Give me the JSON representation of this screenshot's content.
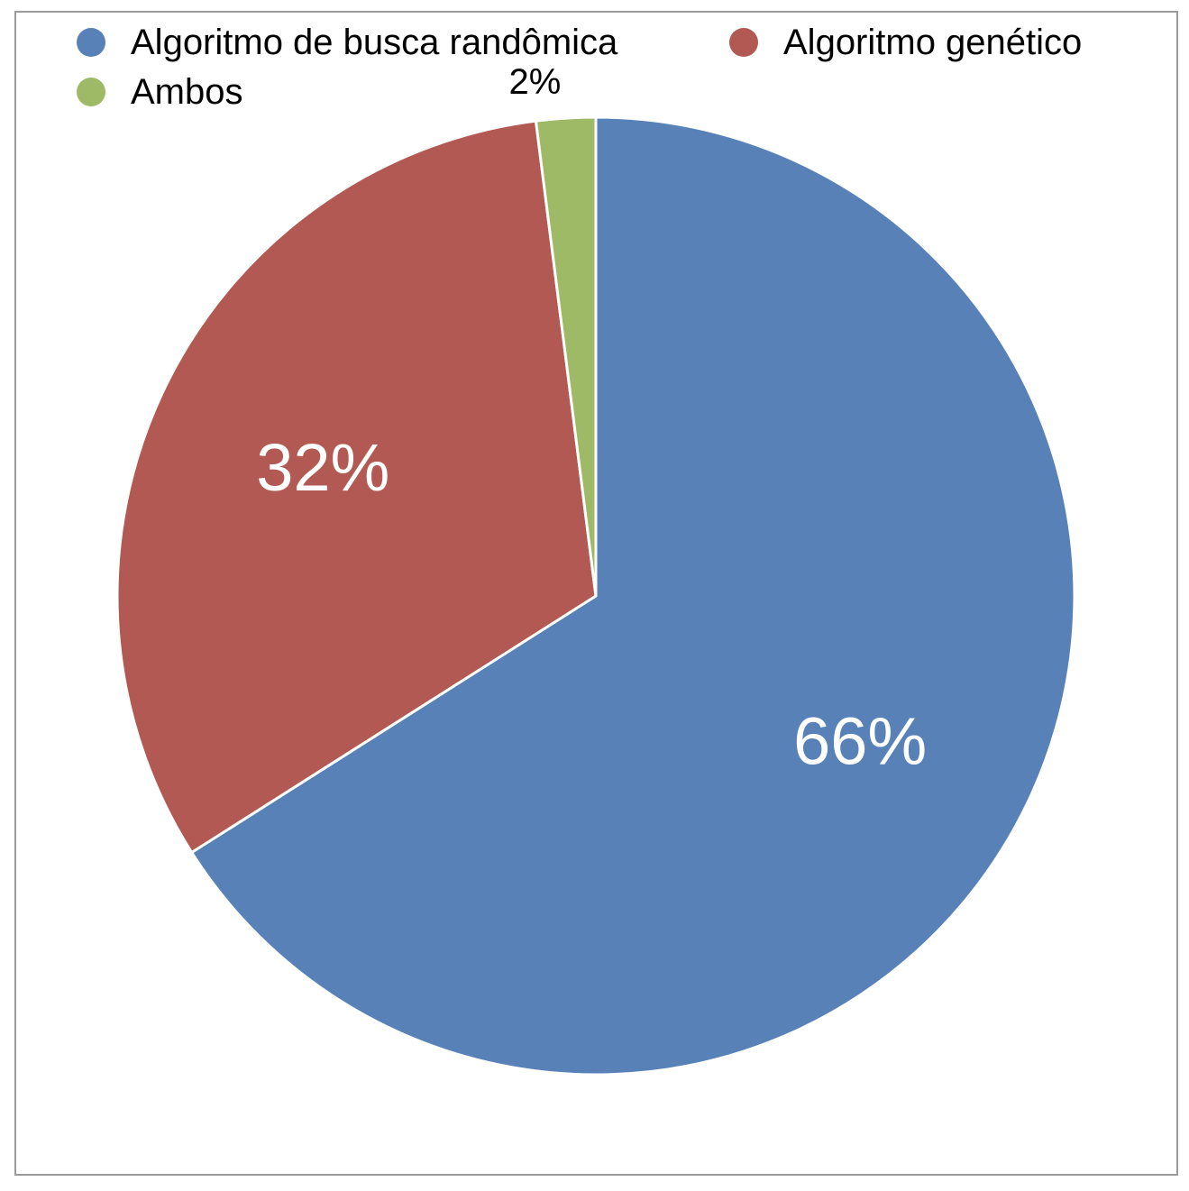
{
  "chart_data": {
    "type": "pie",
    "title": "",
    "categories": [
      "Algoritmo de busca randômica",
      "Algoritmo genético",
      "Ambos"
    ],
    "values": [
      66,
      32,
      2
    ],
    "data_labels": [
      "66%",
      "32%",
      "2%"
    ],
    "colors": [
      "#5881b8",
      "#b15952",
      "#9fba66"
    ],
    "start_angle_deg": 0,
    "direction": "clockwise",
    "legend": {
      "placement": "top",
      "items": [
        {
          "label": "Algoritmo de busca randômica",
          "color": "#5881b8"
        },
        {
          "label": "Algoritmo genético",
          "color": "#b15952"
        },
        {
          "label": "Ambos",
          "color": "#9fba66"
        }
      ]
    }
  }
}
